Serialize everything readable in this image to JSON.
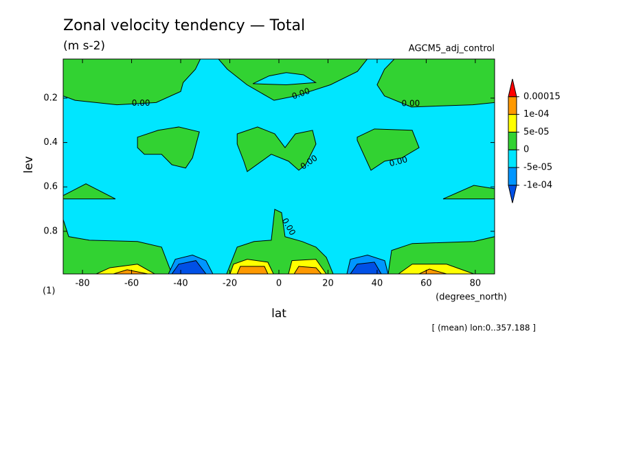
{
  "chart_data": {
    "type": "contour",
    "title": "Zonal velocity tendency — Total",
    "subtitle": "(m s-2)",
    "run_label": "AGCM5_adj_control",
    "x_label": "lat",
    "x_unit": "(degrees_north)",
    "y_label": "lev",
    "y_unit": "(1)",
    "note": "[ (mean) lon:0..357.188 ]",
    "xlim": [
      -87.86,
      87.86
    ],
    "xticks": [
      -80,
      -60,
      -40,
      -20,
      0,
      20,
      40,
      60,
      80
    ],
    "ylim": [
      0.024,
      0.992
    ],
    "yticks": [
      0.2,
      0.4,
      0.6,
      0.8
    ],
    "y_inverted": true,
    "colorbar": {
      "levels": [
        {
          "value": -0.0001,
          "label": "-1e-04"
        },
        {
          "value": -5e-05,
          "label": "-5e-05"
        },
        0,
        {
          "value": 5e-05,
          "label": "5e-05"
        },
        {
          "value": 0.0001,
          "label": "1e-04"
        },
        0.00015
      ],
      "colors": [
        "#0050e6",
        "#0096ff",
        "#00e6ff",
        "#32d232",
        "#ffff00",
        "#ff9900",
        "#ff0000"
      ]
    },
    "regions": [
      {
        "band": 2,
        "points": [
          [
            -87.86,
            0.024
          ],
          [
            87.86,
            0.024
          ],
          [
            87.86,
            0.992
          ],
          [
            -87.86,
            0.992
          ]
        ]
      },
      {
        "band": 3,
        "points": [
          [
            -87.86,
            0.024
          ],
          [
            -32,
            0.024
          ],
          [
            -34,
            0.07
          ],
          [
            -39,
            0.13
          ],
          [
            -40,
            0.17
          ],
          [
            -50,
            0.22
          ],
          [
            -66,
            0.23
          ],
          [
            -83,
            0.21
          ],
          [
            -87.86,
            0.19
          ]
        ]
      },
      {
        "band": 3,
        "points": [
          [
            -24.6,
            0.024
          ],
          [
            -21,
            0.07
          ],
          [
            -13,
            0.14
          ],
          [
            -2,
            0.21
          ],
          [
            7,
            0.19
          ],
          [
            21,
            0.14
          ],
          [
            32,
            0.08
          ],
          [
            36,
            0.024
          ]
        ]
      },
      {
        "band": 2,
        "points": [
          [
            -10.6,
            0.135
          ],
          [
            -4,
            0.1
          ],
          [
            3,
            0.085
          ],
          [
            10,
            0.095
          ],
          [
            15,
            0.13
          ],
          [
            3,
            0.14
          ]
        ]
      },
      {
        "band": 3,
        "points": [
          [
            47,
            0.024
          ],
          [
            87.86,
            0.024
          ],
          [
            87.86,
            0.22
          ],
          [
            79,
            0.23
          ],
          [
            54,
            0.24
          ],
          [
            43,
            0.19
          ],
          [
            40,
            0.14
          ],
          [
            43,
            0.07
          ]
        ]
      },
      {
        "band": 3,
        "points": [
          [
            -57.6,
            0.376
          ],
          [
            -49.2,
            0.345
          ],
          [
            -40.8,
            0.33
          ],
          [
            -32.4,
            0.352
          ],
          [
            -35.2,
            0.469
          ],
          [
            -38,
            0.515
          ],
          [
            -43.6,
            0.5
          ],
          [
            -47.8,
            0.453
          ],
          [
            -54.8,
            0.453
          ],
          [
            -57.6,
            0.423
          ]
        ]
      },
      {
        "band": 3,
        "points": [
          [
            -17,
            0.361
          ],
          [
            -8.7,
            0.33
          ],
          [
            -1.7,
            0.361
          ],
          [
            2.5,
            0.423
          ],
          [
            6.7,
            0.361
          ],
          [
            13.7,
            0.345
          ],
          [
            15.1,
            0.407
          ],
          [
            10.9,
            0.5
          ],
          [
            8.1,
            0.525
          ],
          [
            3.9,
            0.484
          ],
          [
            -3.1,
            0.453
          ],
          [
            -12.9,
            0.531
          ],
          [
            -14.3,
            0.484
          ],
          [
            -17,
            0.407
          ]
        ]
      },
      {
        "band": 3,
        "points": [
          [
            31.9,
            0.376
          ],
          [
            38.9,
            0.339
          ],
          [
            54.3,
            0.345
          ],
          [
            57.1,
            0.423
          ],
          [
            50.1,
            0.469
          ],
          [
            43.1,
            0.484
          ],
          [
            37.5,
            0.525
          ],
          [
            31.9,
            0.39
          ]
        ]
      },
      {
        "band": 3,
        "points": [
          [
            -87.86,
            0.639
          ],
          [
            -78.6,
            0.586
          ],
          [
            -66.6,
            0.654
          ],
          [
            -87.86,
            0.654
          ]
        ]
      },
      {
        "band": 3,
        "points": [
          [
            66.9,
            0.654
          ],
          [
            79.4,
            0.593
          ],
          [
            87.86,
            0.608
          ],
          [
            87.86,
            0.654
          ]
        ]
      },
      {
        "band": 3,
        "points": [
          [
            -87.86,
            0.747
          ],
          [
            -85.6,
            0.824
          ],
          [
            -77.2,
            0.84
          ],
          [
            -57.6,
            0.846
          ],
          [
            -47.8,
            0.871
          ],
          [
            -43.6,
            0.992
          ],
          [
            -87.86,
            0.992
          ]
        ]
      },
      {
        "band": 3,
        "points": [
          [
            -21.3,
            0.992
          ],
          [
            -17,
            0.871
          ],
          [
            -10.1,
            0.846
          ],
          [
            -3.1,
            0.84
          ],
          [
            -1.7,
            0.701
          ],
          [
            1.1,
            0.716
          ],
          [
            2.5,
            0.824
          ],
          [
            9.5,
            0.846
          ],
          [
            15.1,
            0.871
          ],
          [
            19.3,
            0.917
          ],
          [
            22.1,
            0.992
          ]
        ]
      },
      {
        "band": 3,
        "points": [
          [
            44.5,
            0.992
          ],
          [
            45.9,
            0.886
          ],
          [
            54.3,
            0.855
          ],
          [
            79.4,
            0.846
          ],
          [
            87.86,
            0.824
          ],
          [
            87.86,
            0.992
          ]
        ]
      },
      {
        "band": 4,
        "points": [
          [
            -74.4,
            0.992
          ],
          [
            -68.8,
            0.964
          ],
          [
            -57.6,
            0.948
          ],
          [
            -50.6,
            0.992
          ]
        ]
      },
      {
        "band": 5,
        "points": [
          [
            -67.4,
            0.992
          ],
          [
            -61.8,
            0.973
          ],
          [
            -53.4,
            0.992
          ]
        ]
      },
      {
        "band": 4,
        "points": [
          [
            -19.9,
            0.992
          ],
          [
            -18.5,
            0.948
          ],
          [
            -12.9,
            0.926
          ],
          [
            -4.5,
            0.939
          ],
          [
            -2.2,
            0.992
          ]
        ]
      },
      {
        "band": 5,
        "points": [
          [
            -17,
            0.992
          ],
          [
            -15.7,
            0.958
          ],
          [
            -5.9,
            0.958
          ],
          [
            -4.5,
            0.992
          ]
        ]
      },
      {
        "band": 4,
        "points": [
          [
            3.9,
            0.992
          ],
          [
            5.3,
            0.932
          ],
          [
            15.1,
            0.926
          ],
          [
            19.3,
            0.992
          ]
        ]
      },
      {
        "band": 5,
        "points": [
          [
            6.2,
            0.992
          ],
          [
            8.1,
            0.958
          ],
          [
            15.1,
            0.964
          ],
          [
            17.3,
            0.992
          ]
        ]
      },
      {
        "band": 4,
        "points": [
          [
            48.7,
            0.992
          ],
          [
            54.3,
            0.948
          ],
          [
            68.3,
            0.948
          ],
          [
            79.4,
            0.992
          ]
        ]
      },
      {
        "band": 5,
        "points": [
          [
            57.1,
            0.992
          ],
          [
            61.3,
            0.97
          ],
          [
            68.3,
            0.992
          ]
        ]
      },
      {
        "band": 1,
        "points": [
          [
            -45,
            0.992
          ],
          [
            -42.2,
            0.926
          ],
          [
            -35.2,
            0.907
          ],
          [
            -29.7,
            0.932
          ],
          [
            -26.9,
            0.992
          ]
        ]
      },
      {
        "band": 0,
        "points": [
          [
            -43.6,
            0.992
          ],
          [
            -40.8,
            0.948
          ],
          [
            -33.8,
            0.932
          ],
          [
            -29.7,
            0.992
          ]
        ]
      },
      {
        "band": 1,
        "points": [
          [
            27.7,
            0.992
          ],
          [
            29.1,
            0.926
          ],
          [
            36.1,
            0.907
          ],
          [
            43.1,
            0.932
          ],
          [
            44.5,
            0.992
          ]
        ]
      },
      {
        "band": 0,
        "points": [
          [
            29.1,
            0.992
          ],
          [
            31.9,
            0.948
          ],
          [
            38.9,
            0.939
          ],
          [
            41.7,
            0.992
          ]
        ]
      }
    ],
    "contour_labels": [
      {
        "text": "0.00",
        "lat": -56.2,
        "lev": 0.223
      },
      {
        "text": "0.00",
        "lat": 9,
        "lev": 0.181
      },
      {
        "text": "0.00",
        "lat": 53.7,
        "lev": 0.225
      },
      {
        "text": "0.00",
        "lat": 12.3,
        "lev": 0.49
      },
      {
        "text": "0.00",
        "lat": 48.7,
        "lev": 0.487
      },
      {
        "text": "0.00",
        "lat": 3.9,
        "lev": 0.78
      }
    ]
  }
}
